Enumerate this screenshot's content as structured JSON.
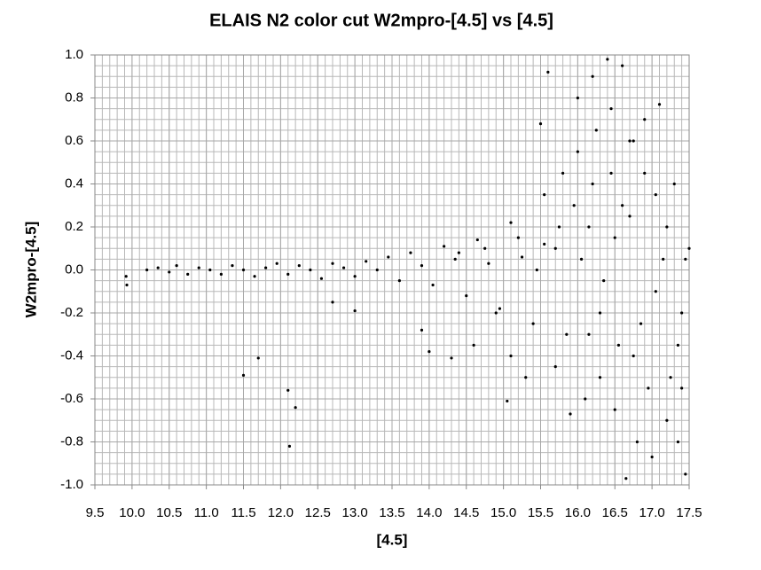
{
  "chart_data": {
    "type": "scatter",
    "title": "ELAIS N2 color cut W2mpro-[4.5] vs [4.5]",
    "x_label": "[4.5]",
    "y_label": "W2mpro-[4.5]",
    "color": "#000000",
    "grid": true,
    "minor_grid": {
      "x": 0.1,
      "y": 0.05
    },
    "xlim": [
      9.5,
      17.5
    ],
    "ylim": [
      -1,
      1
    ],
    "xticks": [
      9.5,
      {
        "value": 10,
        "label": "10.0"
      },
      10.5,
      {
        "value": 11,
        "label": "11.0"
      },
      11.5,
      {
        "value": 12,
        "label": "12.0"
      },
      12.5,
      {
        "value": 13,
        "label": "13.0"
      },
      13.5,
      {
        "value": 14,
        "label": "14.0"
      },
      14.5,
      {
        "value": 15,
        "label": "15.0"
      },
      15.5,
      {
        "value": 16,
        "label": "16.0"
      },
      16.5,
      {
        "value": 17,
        "label": "17.0"
      },
      17.5
    ],
    "yticks": [
      {
        "value": 1,
        "label": "1.0"
      },
      0.8,
      0.6,
      0.4,
      0.2,
      {
        "value": 0,
        "label": "0.0"
      },
      -0.2,
      -0.4,
      -0.6,
      -0.8,
      {
        "value": -1,
        "label": "-1.0"
      }
    ],
    "x": [
      9.92,
      9.93,
      10.2,
      10.35,
      10.5,
      10.6,
      10.75,
      10.9,
      11.05,
      11.2,
      11.35,
      11.5,
      11.65,
      11.8,
      11.95,
      12.1,
      12.25,
      12.4,
      12.55,
      12.7,
      12.85,
      13.0,
      13.15,
      13.3,
      13.45,
      13.6,
      13.75,
      13.9,
      14.05,
      14.2,
      14.35,
      14.5,
      14.65,
      14.8,
      14.95,
      15.1,
      15.25,
      15.4,
      15.55,
      15.7,
      15.85,
      16.0,
      16.15,
      16.3,
      16.45,
      16.6,
      16.75,
      16.9,
      17.05,
      17.2,
      17.35,
      17.45,
      11.5,
      11.7,
      12.1,
      12.2,
      12.12,
      13.0,
      12.7,
      13.9,
      14.3,
      14.0,
      14.6,
      14.9,
      15.05,
      15.1,
      15.3,
      15.5,
      15.6,
      15.7,
      15.8,
      15.9,
      16.0,
      16.1,
      16.2,
      16.3,
      16.4,
      16.5,
      16.6,
      16.65,
      16.7,
      16.8,
      16.9,
      17.0,
      17.1,
      17.2,
      17.3,
      17.4,
      17.5,
      16.2,
      16.35,
      16.5,
      16.7,
      16.85,
      17.05,
      17.25,
      17.4,
      15.55,
      15.95,
      16.15,
      16.45,
      16.75,
      16.95,
      17.15,
      17.35,
      14.4,
      14.75,
      15.2,
      15.45,
      15.75,
      16.05,
      16.25,
      16.55,
      17.45
    ],
    "values": [
      -0.03,
      -0.07,
      0.0,
      0.01,
      -0.01,
      0.02,
      -0.02,
      0.01,
      0.0,
      -0.02,
      0.02,
      0.0,
      -0.03,
      0.01,
      0.03,
      -0.02,
      0.02,
      0.0,
      -0.04,
      0.03,
      0.01,
      -0.03,
      0.04,
      0.0,
      0.06,
      -0.05,
      0.08,
      0.02,
      -0.07,
      0.11,
      0.05,
      -0.12,
      0.14,
      0.03,
      -0.18,
      0.22,
      0.06,
      -0.25,
      0.35,
      0.1,
      -0.3,
      0.55,
      0.2,
      -0.2,
      0.75,
      0.3,
      -0.4,
      0.45,
      -0.1,
      0.2,
      -0.35,
      0.05,
      -0.49,
      -0.41,
      -0.56,
      -0.64,
      -0.82,
      -0.19,
      -0.15,
      -0.28,
      -0.41,
      -0.38,
      -0.35,
      -0.2,
      -0.61,
      -0.4,
      -0.5,
      0.68,
      0.92,
      -0.45,
      0.45,
      -0.67,
      0.8,
      -0.6,
      0.9,
      -0.5,
      0.98,
      -0.65,
      0.95,
      -0.97,
      0.6,
      -0.8,
      0.7,
      -0.87,
      0.77,
      -0.7,
      0.4,
      -0.55,
      0.1,
      0.4,
      -0.05,
      0.15,
      0.25,
      -0.25,
      0.35,
      -0.5,
      -0.2,
      0.12,
      0.3,
      -0.3,
      0.45,
      0.6,
      -0.55,
      0.05,
      -0.8,
      0.08,
      0.1,
      0.15,
      0.0,
      0.2,
      0.05,
      0.65,
      -0.35,
      -0.95
    ]
  }
}
